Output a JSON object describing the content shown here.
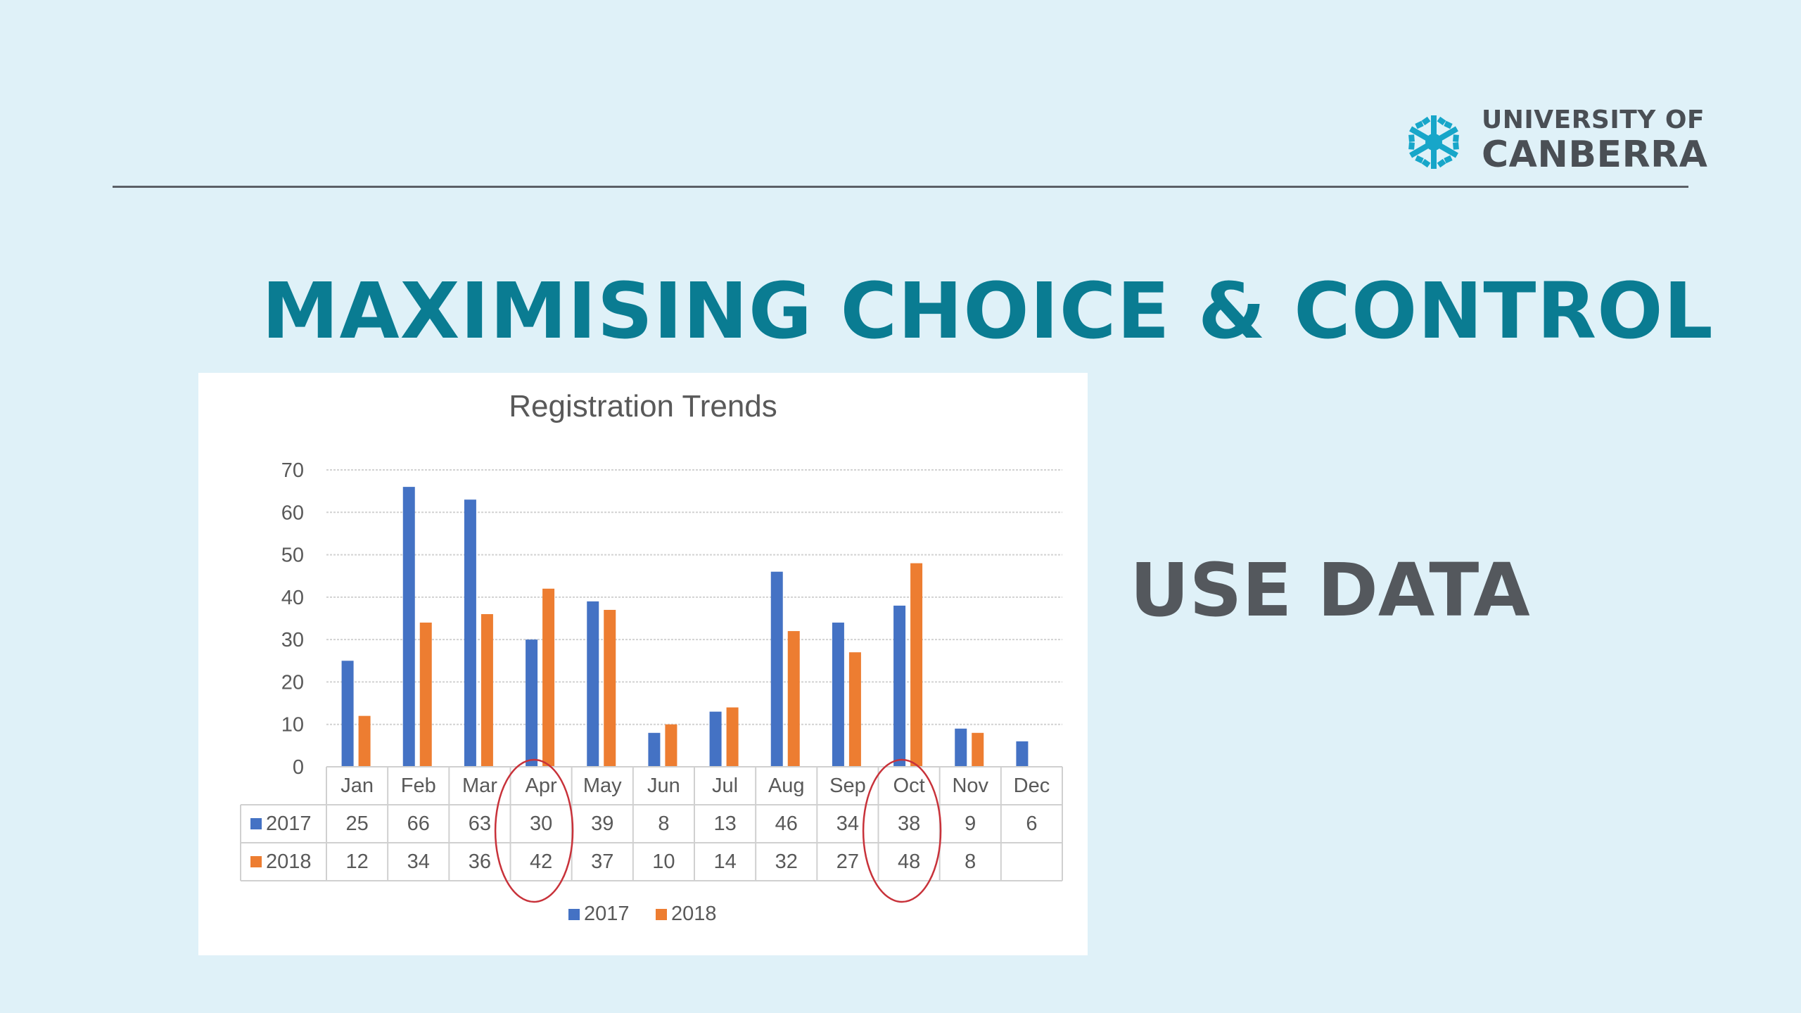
{
  "logo": {
    "line1": "UNIVERSITY OF",
    "line2": "CANBERRA",
    "icon": "canberra-snowflake-icon",
    "color": "#17a6c9"
  },
  "slide": {
    "title": "MAXIMISING CHOICE & CONTROL",
    "subtitle": "USE DATA"
  },
  "chart_data": {
    "type": "bar",
    "title": "Registration Trends",
    "categories": [
      "Jan",
      "Feb",
      "Mar",
      "Apr",
      "May",
      "Jun",
      "Jul",
      "Aug",
      "Sep",
      "Oct",
      "Nov",
      "Dec"
    ],
    "series": [
      {
        "name": "2017",
        "color": "#4472c4",
        "values": [
          25,
          66,
          63,
          30,
          39,
          8,
          13,
          46,
          34,
          38,
          9,
          6
        ]
      },
      {
        "name": "2018",
        "color": "#ed7d31",
        "values": [
          12,
          34,
          36,
          42,
          37,
          10,
          14,
          32,
          27,
          48,
          8,
          null
        ]
      }
    ],
    "ylim": [
      0,
      70
    ],
    "yticks": [
      0,
      10,
      20,
      30,
      40,
      50,
      60,
      70
    ],
    "grid": true,
    "data_table": true,
    "legend": "bottom",
    "highlighted_categories": [
      "Apr",
      "Oct"
    ],
    "highlight_color": "#c8323a"
  }
}
